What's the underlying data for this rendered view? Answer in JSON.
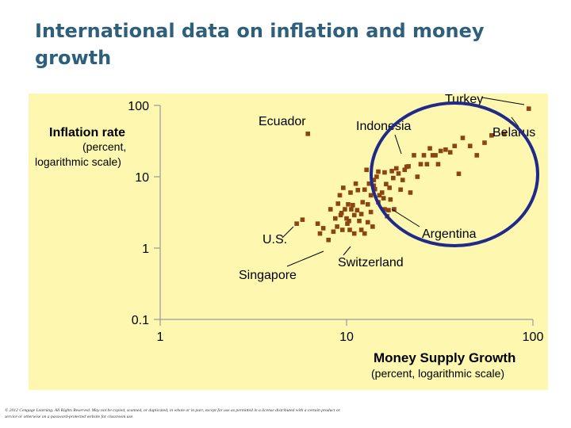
{
  "slide": {
    "title": "International data on inflation and money growth",
    "footer": "© 2012 Cengage Learning. All Rights Reserved. May not be copied, scanned, or duplicated, in whole or in part, except for use as permitted in a license distributed with a certain product or service or otherwise on a password-protected website for classroom use."
  },
  "chart_data": {
    "type": "scatter",
    "title": "",
    "xlabel": "Money Supply Growth",
    "xlabel_sub": "(percent, logarithmic scale)",
    "ylabel": "Inflation rate",
    "ylabel_sub_1": "(percent,",
    "ylabel_sub_2": "logarithmic scale)",
    "xscale": "log",
    "yscale": "log",
    "xlim": [
      1,
      100
    ],
    "ylim": [
      0.1,
      100
    ],
    "xticks": [
      "1",
      "10",
      "100"
    ],
    "yticks": [
      "0.1",
      "1",
      "10",
      "100"
    ],
    "grid": false,
    "colors": {
      "background": "#fdf7b0",
      "points": "#8b4513",
      "axes": "#999999",
      "circle": "#1f2a8a",
      "title": "#2e5f7b"
    },
    "annotations": [
      {
        "label": "Turkey",
        "x": 100,
        "y": 100
      },
      {
        "label": "Belarus",
        "x": 95,
        "y": 90
      },
      {
        "label": "Ecuador",
        "x": 6.2,
        "y": 40
      },
      {
        "label": "Indonesia",
        "x": 14,
        "y": 40
      },
      {
        "label": "Argentina",
        "x": 28,
        "y": 3.0
      },
      {
        "label": "U.S.",
        "x": 5.4,
        "y": 2.2
      },
      {
        "label": "Singapore",
        "x": 6.2,
        "y": 1.3
      },
      {
        "label": "Switzerland",
        "x": 10.5,
        "y": 1.3
      }
    ],
    "highlight_circle": {
      "center_x": 45,
      "center_y": 12,
      "description": "ellipse around high-inflation countries"
    },
    "points": [
      [
        5.4,
        2.2
      ],
      [
        5.8,
        2.5
      ],
      [
        6.2,
        40
      ],
      [
        7.0,
        2.2
      ],
      [
        7.5,
        1.9
      ],
      [
        7.2,
        1.6
      ],
      [
        8.0,
        1.3
      ],
      [
        8.2,
        3.5
      ],
      [
        8.5,
        1.7
      ],
      [
        8.7,
        2.6
      ],
      [
        8.9,
        2.0
      ],
      [
        9.0,
        4.2
      ],
      [
        9.2,
        5.5
      ],
      [
        9.3,
        2.9
      ],
      [
        9.4,
        3.1
      ],
      [
        9.5,
        1.8
      ],
      [
        9.6,
        7.0
      ],
      [
        9.8,
        3.5
      ],
      [
        10.0,
        2.6
      ],
      [
        10.1,
        2.2
      ],
      [
        10.2,
        4.1
      ],
      [
        10.3,
        2.4
      ],
      [
        10.4,
        1.8
      ],
      [
        10.5,
        6.0
      ],
      [
        10.6,
        3.5
      ],
      [
        10.8,
        4.0
      ],
      [
        11.0,
        2.9
      ],
      [
        11.0,
        1.6
      ],
      [
        11.2,
        8.0
      ],
      [
        11.4,
        3.4
      ],
      [
        11.5,
        6.5
      ],
      [
        11.7,
        2.4
      ],
      [
        12.0,
        3.0
      ],
      [
        12.0,
        1.8
      ],
      [
        12.2,
        4.4
      ],
      [
        12.5,
        1.6
      ],
      [
        12.5,
        6.6
      ],
      [
        12.8,
        12.5
      ],
      [
        13.0,
        2.3
      ],
      [
        13.0,
        4.1
      ],
      [
        13.2,
        8.0
      ],
      [
        13.5,
        3.2
      ],
      [
        13.5,
        5.5
      ],
      [
        13.8,
        2.0
      ],
      [
        14.0,
        9.0
      ],
      [
        14.0,
        7.5
      ],
      [
        14.2,
        6.7
      ],
      [
        14.5,
        10.0
      ],
      [
        14.8,
        11.8
      ],
      [
        14.8,
        4.4
      ],
      [
        15.0,
        5.5
      ],
      [
        15.5,
        6.0
      ],
      [
        15.8,
        5.0
      ],
      [
        16.0,
        3.5
      ],
      [
        16.0,
        11.5
      ],
      [
        16.3,
        7.9
      ],
      [
        16.5,
        2.8
      ],
      [
        16.8,
        3.4
      ],
      [
        17.0,
        7.0
      ],
      [
        17.2,
        4.8
      ],
      [
        17.5,
        12.0
      ],
      [
        17.8,
        9.6
      ],
      [
        18.0,
        3.5
      ],
      [
        18.5,
        13.1
      ],
      [
        19.0,
        11.1
      ],
      [
        19.5,
        6.6
      ],
      [
        20.0,
        9.0
      ],
      [
        20.5,
        12.5
      ],
      [
        21.0,
        13.8
      ],
      [
        21.5,
        14.0
      ],
      [
        22.0,
        6.0
      ],
      [
        23.0,
        20.0
      ],
      [
        24.0,
        10.0
      ],
      [
        25.0,
        15.0
      ],
      [
        26.0,
        20.0
      ],
      [
        27.0,
        15.0
      ],
      [
        28.0,
        25.0
      ],
      [
        29.0,
        20.0
      ],
      [
        30.0,
        20.0
      ],
      [
        31.0,
        15.0
      ],
      [
        32.0,
        23.0
      ],
      [
        34.0,
        24.0
      ],
      [
        36.0,
        22.0
      ],
      [
        38.0,
        27.0
      ],
      [
        40.0,
        11.0
      ],
      [
        42.0,
        35.0
      ],
      [
        46.0,
        27.0
      ],
      [
        50.0,
        20.0
      ],
      [
        55.0,
        30.0
      ],
      [
        60.0,
        38.0
      ],
      [
        70.0,
        40.0
      ],
      [
        95.0,
        90.0
      ]
    ]
  }
}
